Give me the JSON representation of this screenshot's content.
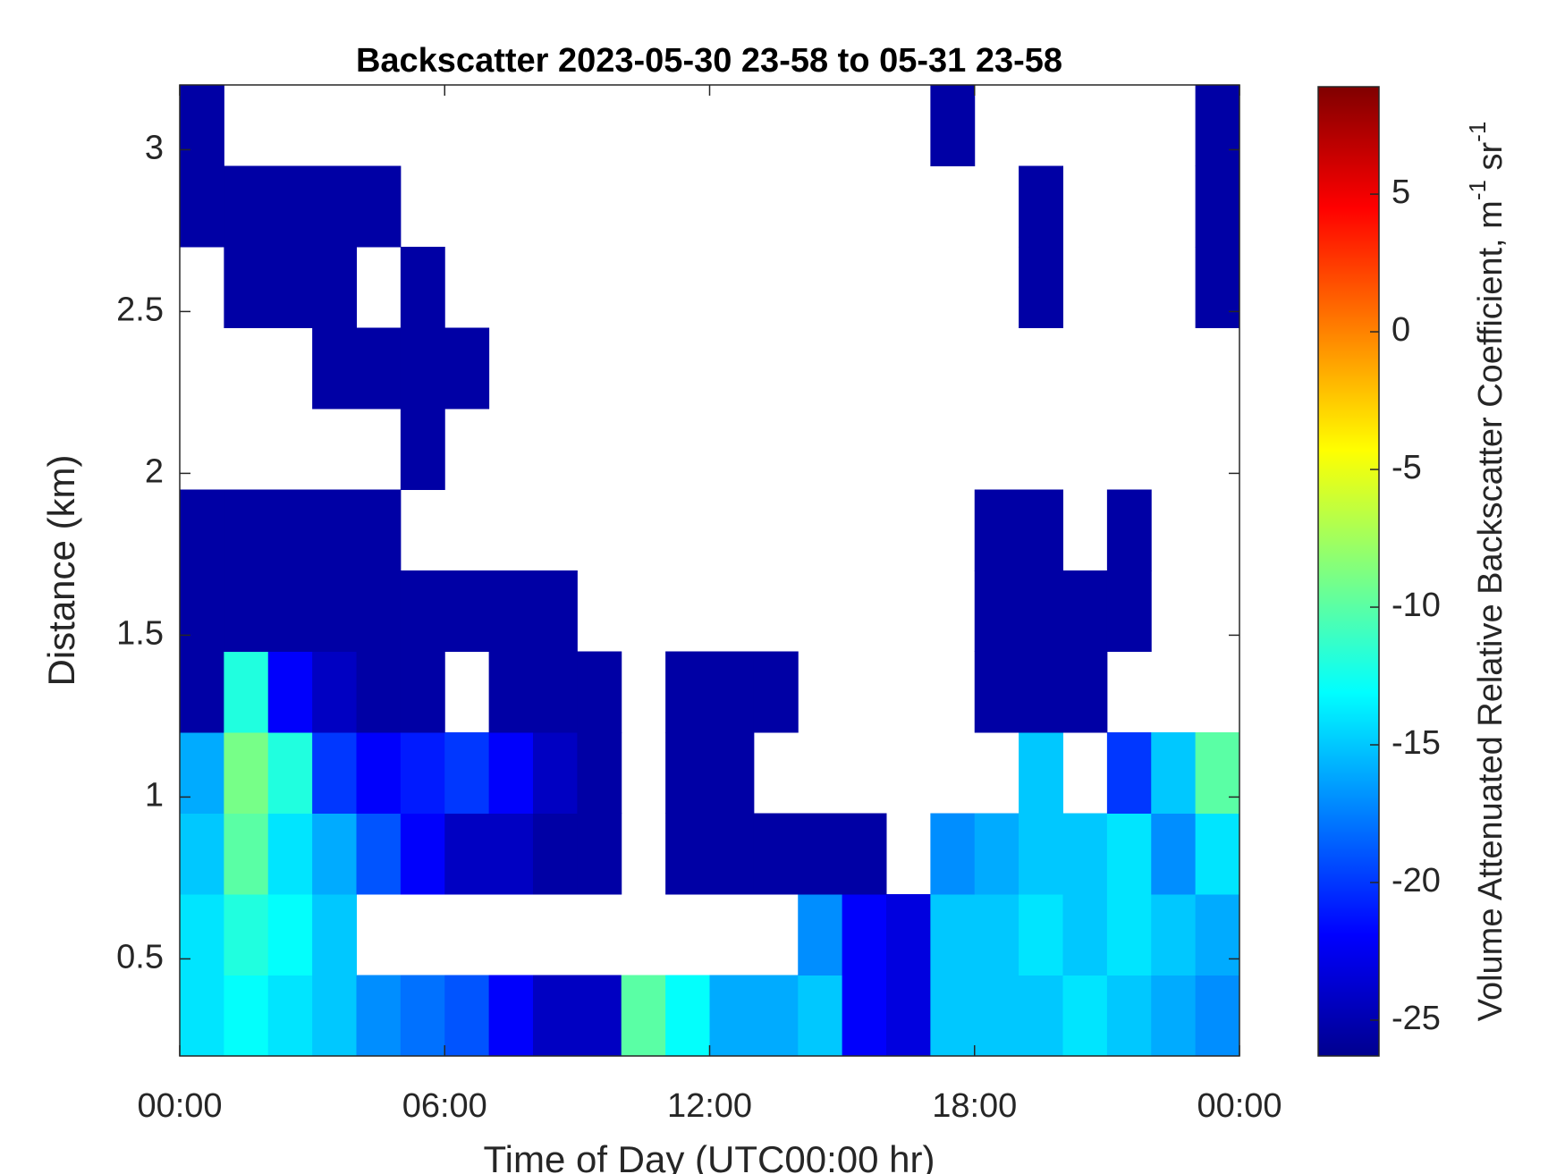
{
  "chart_data": {
    "type": "heatmap",
    "title": "Backscatter 2023-05-30 23-58 to 05-31 23-58",
    "x_label": "Time of Day (UTC00:00 hr)",
    "y_label": "Distance (km)",
    "colorbar_label": [
      "Volume Attenuated Relative Backscatter Coefficient, m",
      "-1",
      " sr",
      "-1"
    ],
    "colormap": "jet",
    "xlim": [
      0,
      24
    ],
    "xticks": [
      {
        "value": 0,
        "label": "00:00"
      },
      {
        "value": 6,
        "label": "06:00"
      },
      {
        "value": 12,
        "label": "12:00"
      },
      {
        "value": 18,
        "label": "18:00"
      },
      {
        "value": 24,
        "label": "00:00"
      }
    ],
    "ylim": [
      0.2,
      3.2
    ],
    "yticks": [
      0.5,
      1,
      1.5,
      2,
      2.5,
      3
    ],
    "clim": [
      -26.3,
      8.9
    ],
    "cticks": [
      -25,
      -20,
      -15,
      -10,
      -5,
      0,
      5
    ],
    "x_edges": [
      0,
      1,
      2,
      3,
      4,
      5,
      6,
      7,
      8,
      9,
      10,
      11,
      12,
      13,
      14,
      15,
      16,
      17,
      18,
      19,
      20,
      21,
      22,
      23,
      24
    ],
    "y_edges": [
      0.2,
      0.45,
      0.7,
      0.95,
      1.2,
      1.45,
      1.7,
      1.95,
      2.2,
      2.45,
      2.7,
      2.95,
      3.2
    ],
    "z": [
      [
        -14,
        -13,
        -14,
        -15,
        -17,
        -18,
        -19,
        -22,
        -24,
        -24,
        -10,
        -13,
        -16,
        -16,
        -15,
        -22,
        -23,
        -15,
        -15,
        -15,
        -14,
        -15,
        -16,
        -17
      ],
      [
        -14,
        -12,
        -13,
        -15,
        null,
        null,
        null,
        null,
        null,
        null,
        null,
        null,
        null,
        null,
        -17,
        -22,
        -23,
        -15,
        -15,
        -14,
        -15,
        -14,
        -15,
        -16
      ],
      [
        -15,
        -10,
        -14,
        -16,
        -19,
        -22,
        -24,
        -24,
        -25,
        -25,
        null,
        -25,
        -25,
        -25,
        -25,
        -25,
        null,
        -17,
        -16,
        -15,
        -15,
        -14,
        -17,
        -14
      ],
      [
        -16,
        -9,
        -12,
        -20,
        -22,
        -21,
        -20,
        -22,
        -24,
        -25,
        null,
        -25,
        -25,
        null,
        null,
        null,
        null,
        null,
        null,
        -15,
        null,
        -20,
        -15,
        -10
      ],
      [
        -25,
        -12,
        -22,
        -24,
        -25,
        -25,
        null,
        -25,
        -25,
        -25,
        null,
        -25,
        -25,
        -25,
        null,
        null,
        null,
        null,
        -25,
        -25,
        -25,
        null,
        null,
        null
      ],
      [
        -25,
        -25,
        -25,
        -25,
        -25,
        -25,
        -25,
        -25,
        -25,
        null,
        null,
        null,
        null,
        null,
        null,
        null,
        null,
        null,
        -25,
        -25,
        -25,
        -25,
        null,
        null
      ],
      [
        -25,
        -25,
        -25,
        -25,
        -25,
        null,
        null,
        null,
        null,
        null,
        null,
        null,
        null,
        null,
        null,
        null,
        null,
        null,
        -25,
        -25,
        null,
        -25,
        null,
        null
      ],
      [
        null,
        null,
        null,
        null,
        null,
        -25,
        null,
        null,
        null,
        null,
        null,
        null,
        null,
        null,
        null,
        null,
        null,
        null,
        null,
        null,
        null,
        null,
        null,
        null
      ],
      [
        null,
        null,
        null,
        -25,
        -25,
        -25,
        -25,
        null,
        null,
        null,
        null,
        null,
        null,
        null,
        null,
        null,
        null,
        null,
        null,
        null,
        null,
        null,
        null,
        null
      ],
      [
        null,
        -25,
        -25,
        -25,
        null,
        -25,
        null,
        null,
        null,
        null,
        null,
        null,
        null,
        null,
        null,
        null,
        null,
        null,
        null,
        -25,
        null,
        null,
        null,
        -25
      ],
      [
        -25,
        -25,
        -25,
        -25,
        -25,
        null,
        null,
        null,
        null,
        null,
        null,
        null,
        null,
        null,
        null,
        null,
        null,
        null,
        null,
        -25,
        null,
        null,
        null,
        -25
      ],
      [
        -25,
        null,
        null,
        null,
        null,
        null,
        null,
        null,
        null,
        null,
        null,
        null,
        null,
        null,
        null,
        null,
        null,
        -25,
        null,
        null,
        null,
        null,
        null,
        -25
      ]
    ]
  }
}
